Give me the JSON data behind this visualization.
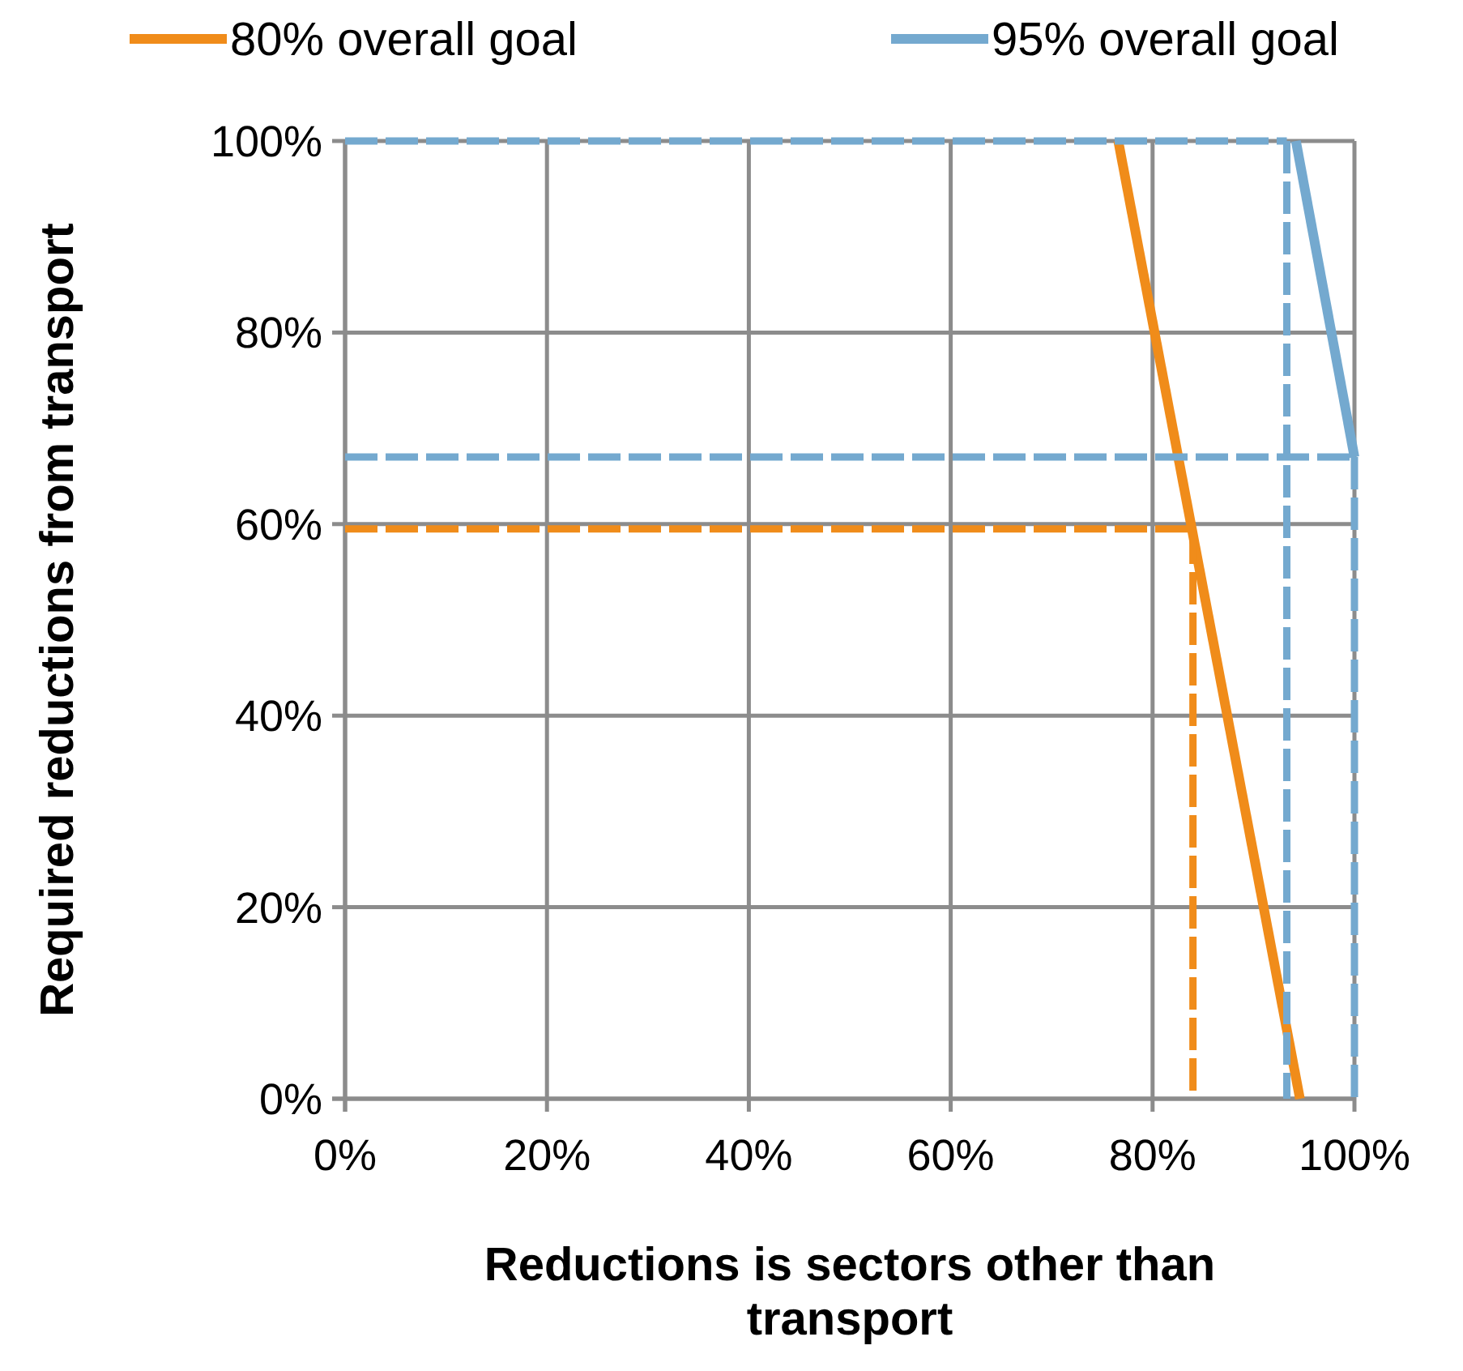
{
  "chart_data": {
    "type": "line",
    "xlabel": "Reductions is sectors other than transport",
    "ylabel": "Required reductions from transport",
    "xlim": [
      0,
      100
    ],
    "ylim": [
      0,
      100
    ],
    "xticks": [
      {
        "value": 0,
        "label": "0%"
      },
      {
        "value": 20,
        "label": "20%"
      },
      {
        "value": 40,
        "label": "40%"
      },
      {
        "value": 60,
        "label": "60%"
      },
      {
        "value": 80,
        "label": "80%"
      },
      {
        "value": 100,
        "label": "100%"
      }
    ],
    "yticks": [
      {
        "value": 0,
        "label": "0%"
      },
      {
        "value": 20,
        "label": "20%"
      },
      {
        "value": 40,
        "label": "40%"
      },
      {
        "value": 60,
        "label": "60%"
      },
      {
        "value": 80,
        "label": "80%"
      },
      {
        "value": 100,
        "label": "100%"
      }
    ],
    "grid": true,
    "legend": "top",
    "line_style": "solid",
    "series": [
      {
        "name": "80% overall goal",
        "color": "#f08c1a",
        "x": [
          76.6,
          94.6
        ],
        "values": [
          100,
          0
        ]
      },
      {
        "name": "95% overall goal",
        "color": "#74a9cf",
        "x": [
          94.2,
          100
        ],
        "values": [
          100,
          67
        ]
      },
      {
        "color": "#f08c1a",
        "line_style": "dashed",
        "x": [
          0,
          84,
          84
        ],
        "values": [
          59.5,
          59.5,
          0
        ]
      },
      {
        "color": "#74a9cf",
        "line_style": "dashed",
        "x": [
          0,
          93.3
        ],
        "values": [
          100,
          100
        ]
      },
      {
        "color": "#74a9cf",
        "line_style": "dashed",
        "x": [
          93.3,
          93.3
        ],
        "values": [
          100,
          0
        ]
      },
      {
        "color": "#74a9cf",
        "line_style": "dashed",
        "x": [
          0,
          100
        ],
        "values": [
          67,
          67
        ]
      },
      {
        "color": "#74a9cf",
        "line_style": "dashed",
        "x": [
          100,
          100
        ],
        "values": [
          67,
          0
        ]
      }
    ]
  }
}
